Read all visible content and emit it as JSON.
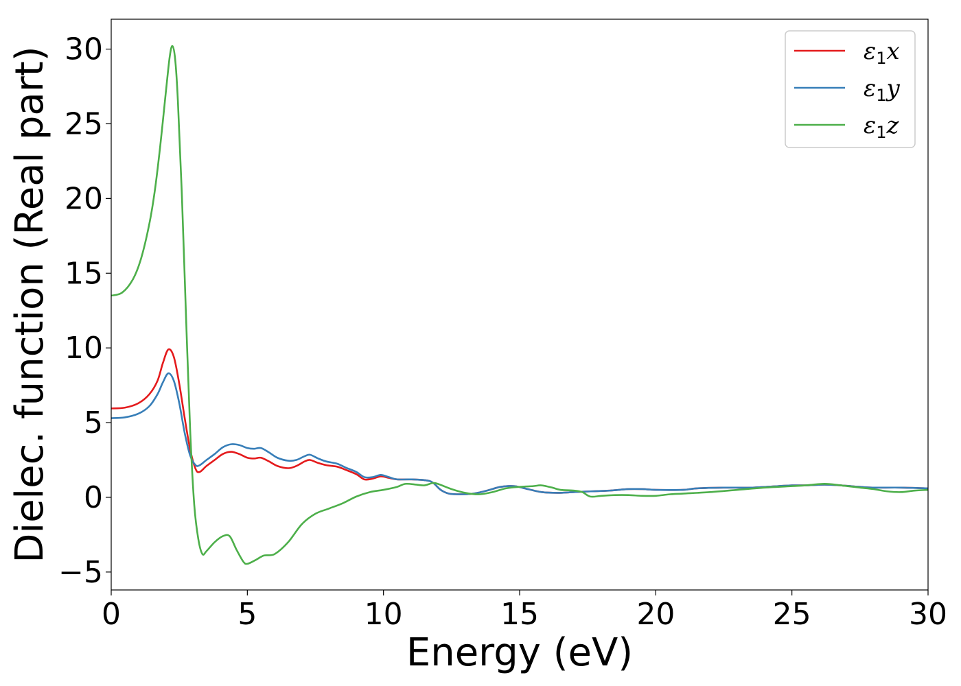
{
  "chart_data": {
    "type": "line",
    "title": "",
    "xlabel": "Energy (eV)",
    "ylabel": "Dielec. function (Real part)",
    "xlim": [
      0,
      30
    ],
    "ylim": [
      -6.2,
      32
    ],
    "x_ticks": [
      0,
      5,
      10,
      15,
      20,
      25,
      30
    ],
    "y_ticks": [
      -5,
      0,
      5,
      10,
      15,
      20,
      25,
      30
    ],
    "x_tick_labels": [
      "0",
      "5",
      "10",
      "15",
      "20",
      "25",
      "30"
    ],
    "y_tick_labels": [
      "−5",
      "0",
      "5",
      "10",
      "15",
      "20",
      "25",
      "30"
    ],
    "grid": false,
    "legend_position": "top-right",
    "series": [
      {
        "name": "ε1x",
        "legend": {
          "symbol": "ε",
          "sub": "1",
          "var": "x"
        },
        "color": "#e41a1c",
        "points": [
          [
            0,
            5.95
          ],
          [
            0.5,
            6.0
          ],
          [
            1,
            6.3
          ],
          [
            1.4,
            6.9
          ],
          [
            1.7,
            7.8
          ],
          [
            1.9,
            9.0
          ],
          [
            2.1,
            9.9
          ],
          [
            2.3,
            9.4
          ],
          [
            2.5,
            7.6
          ],
          [
            2.7,
            5.3
          ],
          [
            2.9,
            3.2
          ],
          [
            3.1,
            1.9
          ],
          [
            3.25,
            1.7
          ],
          [
            3.5,
            2.1
          ],
          [
            3.8,
            2.5
          ],
          [
            4.1,
            2.9
          ],
          [
            4.4,
            3.05
          ],
          [
            4.7,
            2.9
          ],
          [
            5.0,
            2.65
          ],
          [
            5.25,
            2.6
          ],
          [
            5.5,
            2.65
          ],
          [
            5.8,
            2.4
          ],
          [
            6.1,
            2.1
          ],
          [
            6.5,
            1.95
          ],
          [
            6.8,
            2.1
          ],
          [
            7.1,
            2.4
          ],
          [
            7.3,
            2.5
          ],
          [
            7.6,
            2.3
          ],
          [
            7.9,
            2.15
          ],
          [
            8.3,
            2.05
          ],
          [
            8.6,
            1.85
          ],
          [
            9.0,
            1.55
          ],
          [
            9.3,
            1.2
          ],
          [
            9.6,
            1.25
          ],
          [
            9.9,
            1.4
          ],
          [
            10.2,
            1.3
          ],
          [
            10.5,
            1.2
          ],
          [
            11,
            1.2
          ],
          [
            11.5,
            1.15
          ],
          [
            11.8,
            1.0
          ],
          [
            12.1,
            0.5
          ],
          [
            12.4,
            0.25
          ],
          [
            12.8,
            0.2
          ],
          [
            13.3,
            0.25
          ],
          [
            13.8,
            0.45
          ],
          [
            14.3,
            0.7
          ],
          [
            14.8,
            0.75
          ],
          [
            15.3,
            0.55
          ],
          [
            15.8,
            0.35
          ],
          [
            16.4,
            0.3
          ],
          [
            17,
            0.35
          ],
          [
            17.6,
            0.4
          ],
          [
            18.3,
            0.45
          ],
          [
            19,
            0.55
          ],
          [
            19.5,
            0.55
          ],
          [
            20,
            0.5
          ],
          [
            21,
            0.5
          ],
          [
            21.5,
            0.6
          ],
          [
            22.5,
            0.65
          ],
          [
            23.5,
            0.65
          ],
          [
            24.5,
            0.75
          ],
          [
            25,
            0.8
          ],
          [
            25.5,
            0.8
          ],
          [
            26.2,
            0.85
          ],
          [
            26.8,
            0.8
          ],
          [
            27.5,
            0.7
          ],
          [
            28,
            0.65
          ],
          [
            29,
            0.65
          ],
          [
            30,
            0.6
          ]
        ]
      },
      {
        "name": "ε1y",
        "legend": {
          "symbol": "ε",
          "sub": "1",
          "var": "y"
        },
        "color": "#377eb8",
        "points": [
          [
            0,
            5.3
          ],
          [
            0.5,
            5.35
          ],
          [
            1,
            5.6
          ],
          [
            1.4,
            6.1
          ],
          [
            1.7,
            6.9
          ],
          [
            1.9,
            7.7
          ],
          [
            2.1,
            8.3
          ],
          [
            2.3,
            7.8
          ],
          [
            2.5,
            6.3
          ],
          [
            2.7,
            4.3
          ],
          [
            2.9,
            2.8
          ],
          [
            3.1,
            2.15
          ],
          [
            3.25,
            2.15
          ],
          [
            3.5,
            2.5
          ],
          [
            3.8,
            2.9
          ],
          [
            4.1,
            3.35
          ],
          [
            4.4,
            3.55
          ],
          [
            4.7,
            3.5
          ],
          [
            5.0,
            3.3
          ],
          [
            5.25,
            3.25
          ],
          [
            5.5,
            3.3
          ],
          [
            5.8,
            3.0
          ],
          [
            6.1,
            2.65
          ],
          [
            6.5,
            2.45
          ],
          [
            6.8,
            2.5
          ],
          [
            7.1,
            2.75
          ],
          [
            7.3,
            2.85
          ],
          [
            7.6,
            2.6
          ],
          [
            7.9,
            2.4
          ],
          [
            8.3,
            2.25
          ],
          [
            8.6,
            2.0
          ],
          [
            9.0,
            1.7
          ],
          [
            9.3,
            1.35
          ],
          [
            9.6,
            1.35
          ],
          [
            9.9,
            1.5
          ],
          [
            10.2,
            1.35
          ],
          [
            10.5,
            1.2
          ],
          [
            11,
            1.2
          ],
          [
            11.5,
            1.15
          ],
          [
            11.8,
            1.0
          ],
          [
            12.1,
            0.5
          ],
          [
            12.4,
            0.25
          ],
          [
            12.8,
            0.2
          ],
          [
            13.3,
            0.25
          ],
          [
            13.8,
            0.45
          ],
          [
            14.3,
            0.7
          ],
          [
            14.8,
            0.75
          ],
          [
            15.3,
            0.55
          ],
          [
            15.8,
            0.35
          ],
          [
            16.4,
            0.3
          ],
          [
            17,
            0.35
          ],
          [
            17.6,
            0.4
          ],
          [
            18.3,
            0.45
          ],
          [
            19,
            0.55
          ],
          [
            19.5,
            0.55
          ],
          [
            20,
            0.5
          ],
          [
            21,
            0.5
          ],
          [
            21.5,
            0.6
          ],
          [
            22.5,
            0.65
          ],
          [
            23.5,
            0.65
          ],
          [
            24.5,
            0.75
          ],
          [
            25,
            0.8
          ],
          [
            25.5,
            0.8
          ],
          [
            26.2,
            0.85
          ],
          [
            26.8,
            0.8
          ],
          [
            27.5,
            0.7
          ],
          [
            28,
            0.65
          ],
          [
            29,
            0.65
          ],
          [
            30,
            0.6
          ]
        ]
      },
      {
        "name": "ε1z",
        "legend": {
          "symbol": "ε",
          "sub": "1",
          "var": "z"
        },
        "color": "#4daf4a",
        "points": [
          [
            0,
            13.5
          ],
          [
            0.4,
            13.7
          ],
          [
            0.8,
            14.6
          ],
          [
            1.1,
            16.0
          ],
          [
            1.4,
            18.3
          ],
          [
            1.6,
            20.5
          ],
          [
            1.8,
            23.5
          ],
          [
            2.0,
            27.0
          ],
          [
            2.15,
            29.5
          ],
          [
            2.25,
            30.2
          ],
          [
            2.35,
            29.3
          ],
          [
            2.45,
            26.5
          ],
          [
            2.6,
            20.0
          ],
          [
            2.75,
            12.0
          ],
          [
            2.9,
            4.5
          ],
          [
            3.05,
            -0.5
          ],
          [
            3.2,
            -2.8
          ],
          [
            3.35,
            -3.8
          ],
          [
            3.5,
            -3.6
          ],
          [
            3.8,
            -3.0
          ],
          [
            4.1,
            -2.6
          ],
          [
            4.35,
            -2.6
          ],
          [
            4.6,
            -3.5
          ],
          [
            4.85,
            -4.3
          ],
          [
            5.0,
            -4.45
          ],
          [
            5.3,
            -4.2
          ],
          [
            5.6,
            -3.9
          ],
          [
            6.0,
            -3.8
          ],
          [
            6.5,
            -3.0
          ],
          [
            7.0,
            -1.8
          ],
          [
            7.5,
            -1.1
          ],
          [
            8.0,
            -0.75
          ],
          [
            8.5,
            -0.4
          ],
          [
            9.0,
            0.05
          ],
          [
            9.5,
            0.35
          ],
          [
            10,
            0.5
          ],
          [
            10.5,
            0.7
          ],
          [
            10.8,
            0.9
          ],
          [
            11.2,
            0.85
          ],
          [
            11.5,
            0.8
          ],
          [
            11.8,
            0.95
          ],
          [
            12,
            0.9
          ],
          [
            12.5,
            0.55
          ],
          [
            13,
            0.3
          ],
          [
            13.5,
            0.2
          ],
          [
            14,
            0.35
          ],
          [
            14.5,
            0.6
          ],
          [
            15,
            0.7
          ],
          [
            15.5,
            0.75
          ],
          [
            15.8,
            0.8
          ],
          [
            16.2,
            0.65
          ],
          [
            16.5,
            0.5
          ],
          [
            17,
            0.45
          ],
          [
            17.3,
            0.35
          ],
          [
            17.6,
            0.05
          ],
          [
            18,
            0.1
          ],
          [
            18.5,
            0.15
          ],
          [
            19,
            0.15
          ],
          [
            19.5,
            0.1
          ],
          [
            20,
            0.1
          ],
          [
            20.5,
            0.2
          ],
          [
            21,
            0.25
          ],
          [
            22,
            0.35
          ],
          [
            23,
            0.5
          ],
          [
            24,
            0.65
          ],
          [
            25,
            0.75
          ],
          [
            25.5,
            0.8
          ],
          [
            26.2,
            0.9
          ],
          [
            26.8,
            0.8
          ],
          [
            27.5,
            0.65
          ],
          [
            28,
            0.55
          ],
          [
            28.5,
            0.4
          ],
          [
            29,
            0.35
          ],
          [
            29.5,
            0.45
          ],
          [
            30,
            0.5
          ]
        ]
      }
    ]
  }
}
